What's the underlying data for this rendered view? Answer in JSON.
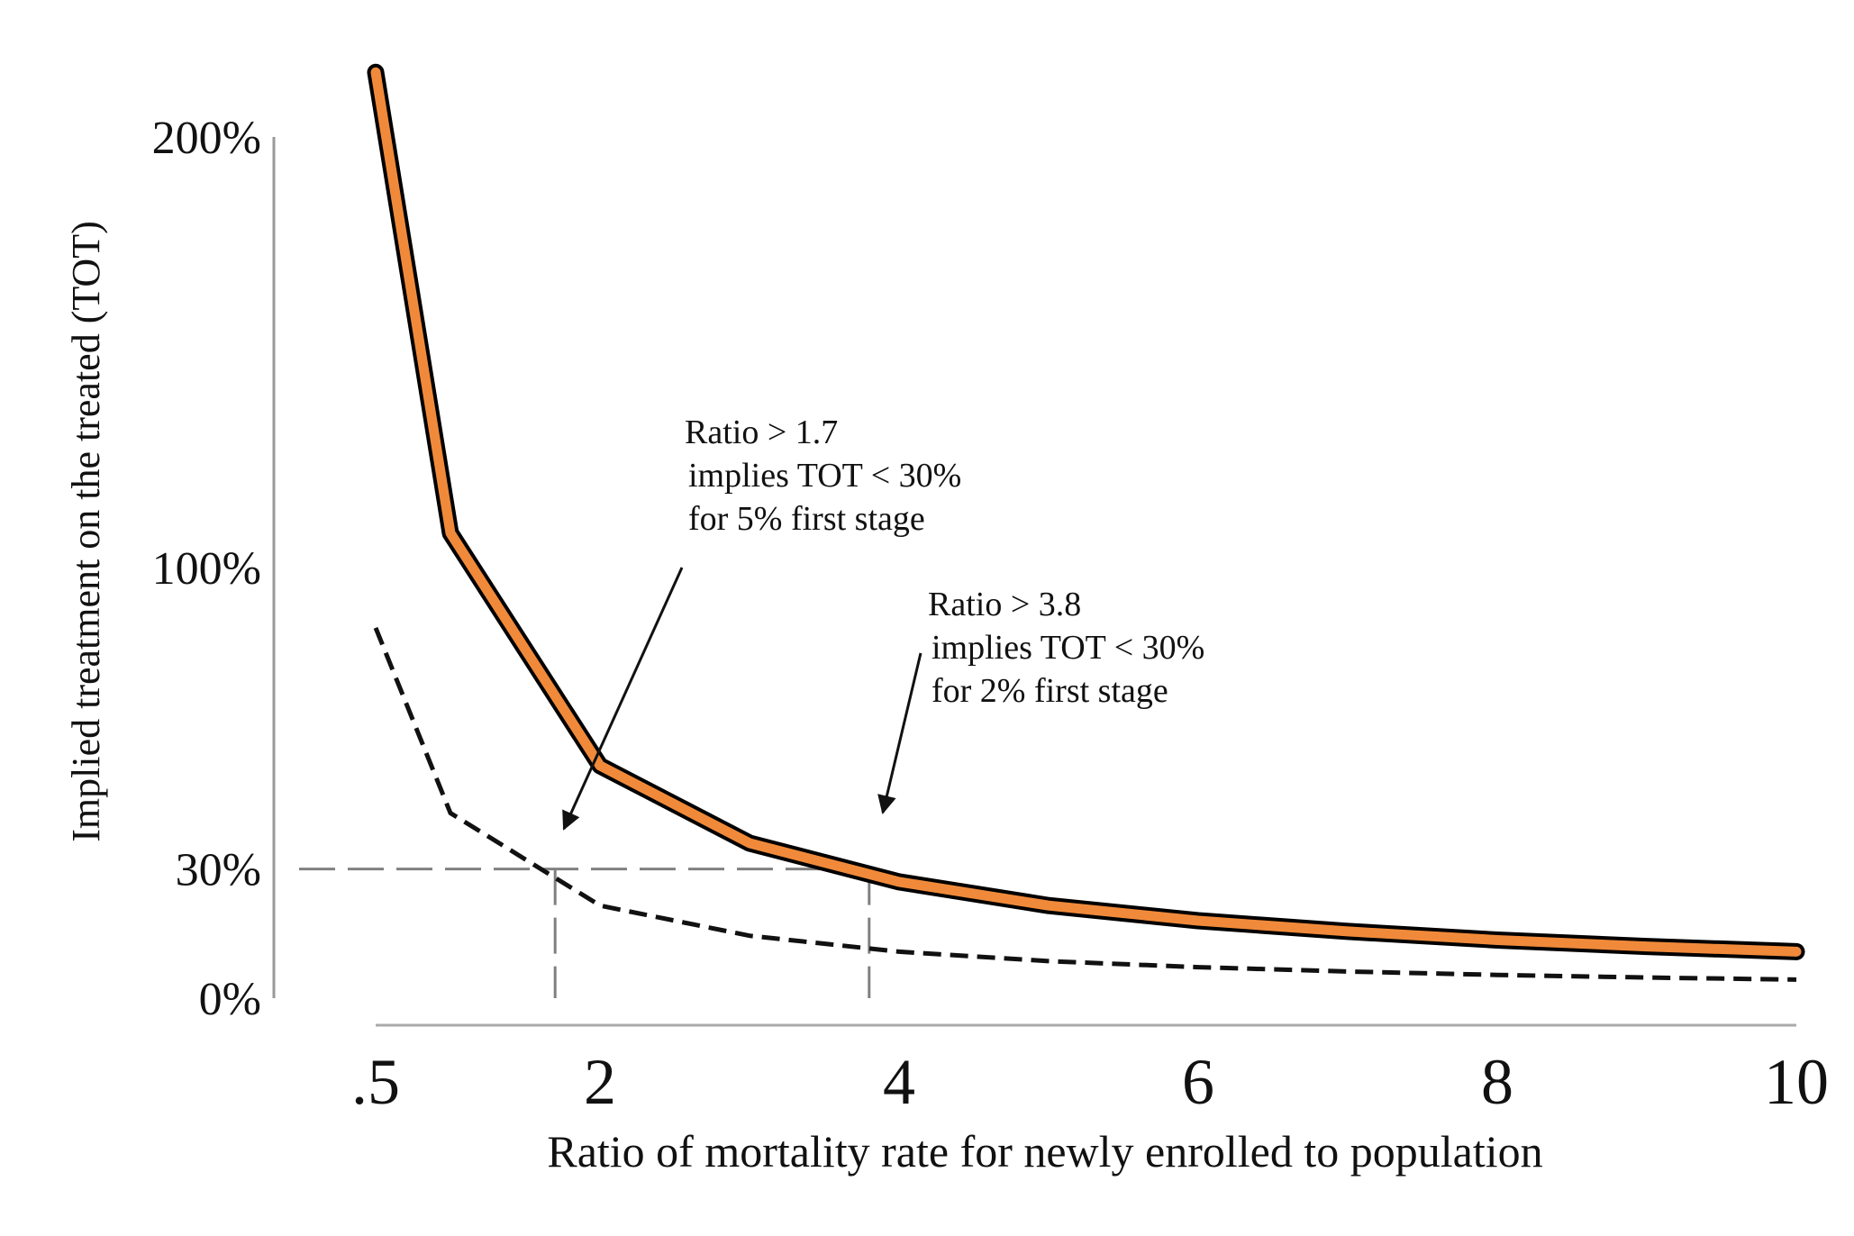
{
  "chart_data": {
    "type": "line",
    "title": "",
    "xlabel": "Ratio of mortality rate for newly enrolled to population",
    "ylabel": "Implied treatment on the treated (TOT)",
    "xlim": [
      0.5,
      10
    ],
    "ylim": [
      0,
      2.0
    ],
    "x_ticks": [
      0.5,
      2,
      4,
      6,
      8,
      10
    ],
    "x_tick_labels": [
      ".5",
      "2",
      "4",
      "6",
      "8",
      "10"
    ],
    "y_ticks": [
      0,
      0.3,
      1.0,
      2.0
    ],
    "y_tick_labels": [
      "0%",
      "30%",
      "100%",
      "200%"
    ],
    "grid": false,
    "legend": "none",
    "series": [
      {
        "style": "solid-orange-outlined",
        "color": "#F08A3A",
        "x": [
          0.5,
          1,
          2,
          3,
          4,
          5,
          6,
          7,
          8,
          9,
          10
        ],
        "y": [
          2.15,
          1.08,
          0.54,
          0.36,
          0.27,
          0.215,
          0.18,
          0.155,
          0.135,
          0.12,
          0.108
        ]
      },
      {
        "style": "dashed-black",
        "color": "#111111",
        "x": [
          0.5,
          1,
          2,
          3,
          4,
          5,
          6,
          7,
          8,
          9,
          10
        ],
        "y": [
          0.86,
          0.43,
          0.215,
          0.145,
          0.108,
          0.086,
          0.072,
          0.062,
          0.054,
          0.048,
          0.043
        ]
      }
    ],
    "reference_lines": {
      "horizontal_y": 0.3,
      "vertical_x": [
        1.7,
        3.8
      ],
      "color": "#808080"
    },
    "annotations": [
      {
        "lines": [
          "Ratio >  1.7",
          "implies TOT < 30%",
          "for 5% first stage"
        ],
        "points_to": {
          "x": 1.7,
          "y": 0.3
        }
      },
      {
        "lines": [
          "Ratio >  3.8",
          "implies TOT < 30%",
          "for 2% first stage"
        ],
        "points_to": {
          "x": 3.8,
          "y": 0.3
        }
      }
    ]
  }
}
